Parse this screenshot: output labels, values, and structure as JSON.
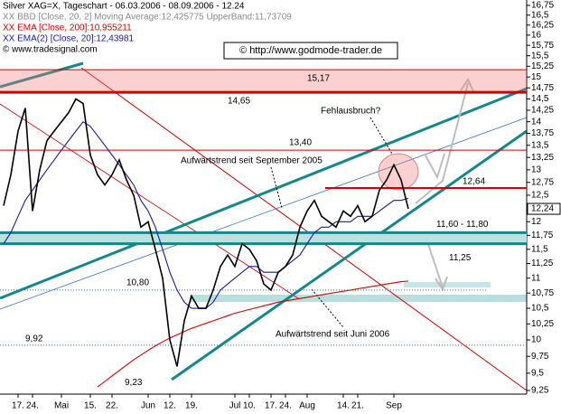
{
  "chart_data": {
    "type": "line",
    "log_scale": true,
    "series": [
      {
        "name": "Silver XAG=X, Tageschart - 06.03.2006 - 08.09.2006 - 12.24",
        "color": "#000000",
        "values": [
          12.3,
          12.9,
          13.8,
          14.3,
          12.2,
          13.0,
          13.6,
          13.8,
          14.0,
          14.2,
          14.5,
          14.4,
          13.3,
          12.9,
          12.7,
          12.9,
          13.2,
          12.8,
          12.5,
          11.9,
          12.0,
          11.5,
          11.0,
          10.0,
          9.6,
          10.3,
          10.7,
          10.5,
          10.5,
          10.8,
          11.2,
          11.4,
          11.2,
          11.6,
          11.5,
          11.3,
          10.9,
          10.8,
          11.1,
          11.2,
          11.4,
          11.9,
          12.2,
          12.4,
          12.1,
          12.0,
          11.9,
          12.2,
          12.1,
          12.3,
          12.0,
          12.1,
          12.6,
          12.8,
          13.1,
          12.8,
          12.24
        ]
      },
      {
        "name": "XX EMA [Close, 200]:10,955211",
        "color": "#d40000",
        "values": [
          null,
          null,
          null,
          null,
          null,
          null,
          null,
          null,
          null,
          null,
          null,
          null,
          null,
          9.3,
          9.38,
          9.46,
          9.54,
          9.62,
          9.7,
          9.77,
          9.84,
          9.91,
          9.97,
          10.03,
          10.08,
          10.13,
          10.18,
          10.22,
          10.26,
          10.3,
          10.34,
          10.38,
          10.42,
          10.45,
          10.48,
          10.51,
          10.54,
          10.57,
          10.6,
          10.62,
          10.64,
          10.66,
          10.68,
          10.7,
          10.72,
          10.74,
          10.76,
          10.78,
          10.8,
          10.82,
          10.84,
          10.86,
          10.88,
          10.9,
          10.92,
          10.94,
          10.95
        ]
      },
      {
        "name": "XX EMA(2) [Close, 20]:12,43981",
        "color": "#1a1aa6",
        "values": [
          11.6,
          11.8,
          12.1,
          12.4,
          12.6,
          12.8,
          13.0,
          13.2,
          13.4,
          13.6,
          13.8,
          14.0,
          13.9,
          13.7,
          13.5,
          13.3,
          13.1,
          12.9,
          12.7,
          12.4,
          12.2,
          11.9,
          11.5,
          11.1,
          10.8,
          10.6,
          10.5,
          10.5,
          10.5,
          10.6,
          10.8,
          10.9,
          11.0,
          11.1,
          11.2,
          11.2,
          11.1,
          11.1,
          11.1,
          11.2,
          11.3,
          11.4,
          11.6,
          11.8,
          11.9,
          11.9,
          12.0,
          12.0,
          12.0,
          12.1,
          12.1,
          12.1,
          12.2,
          12.3,
          12.4,
          12.4,
          12.44
        ]
      }
    ],
    "indicator_label": "XX BBD [Close, 20, 2] Moving Average:12,425775 UpperBand:11,73709",
    "source": "© www.tradesignal.com",
    "watermark": "© http://www.godmode-trader.de",
    "categories": [
      null,
      null,
      "17.",
      null,
      "24.",
      null,
      null,
      null,
      "Mai",
      null,
      null,
      null,
      "15.",
      null,
      null,
      "22.",
      null,
      null,
      null,
      null,
      "Jun",
      null,
      null,
      "12.",
      null,
      null,
      "19.",
      null,
      null,
      null,
      null,
      null,
      "Jul",
      null,
      "10.",
      null,
      null,
      "17.",
      null,
      "24.",
      null,
      null,
      "Aug",
      null,
      null,
      null,
      null,
      "14.",
      null,
      "21.",
      null,
      null,
      null,
      null,
      "Sep",
      null,
      null
    ],
    "ylim": [
      9.25,
      16.75
    ],
    "yticks": [
      {
        "value": 16.75,
        "label": "16,75"
      },
      {
        "value": 16.5,
        "label": "16,5"
      },
      {
        "value": 16.25,
        "label": "16,25"
      },
      16,
      {
        "value": 15.75,
        "label": "15,75"
      },
      {
        "value": 15.5,
        "label": "15,5"
      },
      {
        "value": 15.25,
        "label": "15,25"
      },
      15,
      {
        "value": 14.75,
        "label": "14,75"
      },
      {
        "value": 14.5,
        "label": "14,5"
      },
      {
        "value": 14.25,
        "label": "14,25"
      },
      14,
      {
        "value": 13.75,
        "label": "13,75"
      },
      {
        "value": 13.5,
        "label": "13,5"
      },
      {
        "value": 13.25,
        "label": "13,25"
      },
      13,
      {
        "value": 12.75,
        "label": "12,75"
      },
      {
        "value": 12.5,
        "label": "12,5"
      },
      {
        "value": 12.25,
        "label": "12,25"
      },
      12,
      {
        "value": 11.75,
        "label": "11,75"
      },
      {
        "value": 11.5,
        "label": "11,5"
      },
      {
        "value": 11.25,
        "label": "11,25"
      },
      11,
      {
        "value": 10.75,
        "label": "10,75"
      },
      {
        "value": 10.5,
        "label": "10,5"
      },
      {
        "value": 10.25,
        "label": "10,25"
      },
      10,
      {
        "value": 9.75,
        "label": "9,75"
      },
      {
        "value": 9.5,
        "label": "9,5"
      },
      {
        "value": 9.25,
        "label": "9,25"
      }
    ],
    "last_price": {
      "value": 12.24,
      "label": "12,24"
    },
    "levels": [
      {
        "value": 15.17,
        "label": "15,17"
      },
      {
        "value": 14.65,
        "label": "14,65"
      },
      {
        "value": 13.4,
        "label": "13,40"
      },
      {
        "value": 12.64,
        "label": "12,64"
      },
      {
        "value": 11.25,
        "label": "11,25"
      },
      {
        "value": 10.8,
        "label": "10,80"
      },
      {
        "value": 9.92,
        "label": "9,92"
      },
      {
        "value": 9.23,
        "label": "9,23"
      }
    ],
    "zones": [
      {
        "from": 11.6,
        "to": 11.8,
        "label": "11,60 - 11,80"
      }
    ],
    "annotations": [
      "Aufwärtstrend seit September 2005",
      "Aufwärtstrend seit Juni 2006",
      "Fehlausbruch?"
    ]
  }
}
